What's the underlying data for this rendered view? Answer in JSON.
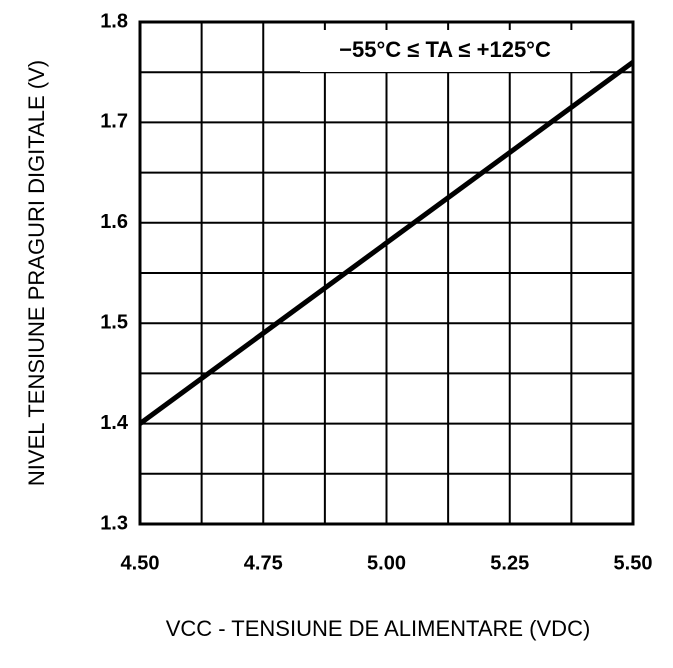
{
  "chart_data": {
    "type": "line",
    "x": [
      4.5,
      5.5
    ],
    "series": [
      {
        "color": "#000000",
        "values": [
          1.4,
          1.76
        ]
      }
    ],
    "xlim": [
      4.5,
      5.5
    ],
    "xticks": [
      {
        "value": 4.5,
        "label": "4.50"
      },
      {
        "value": 4.75,
        "label": "4.75"
      },
      {
        "value": 5.0,
        "label": "5.00"
      },
      {
        "value": 5.25,
        "label": "5.25"
      },
      {
        "value": 5.5,
        "label": "5.50"
      }
    ],
    "ylim": [
      1.3,
      1.8
    ],
    "yticks": [
      1.3,
      1.4,
      1.5,
      1.6,
      1.7,
      1.8
    ],
    "xlabel": "VCC - TENSIUNE DE ALIMENTARE (VDC)",
    "ylabel": "NIVEL TENSIUNE PRAGURI DIGITALE (V)",
    "annotation": "−55°C ≤ TA ≤ +125°C",
    "grid": true
  }
}
